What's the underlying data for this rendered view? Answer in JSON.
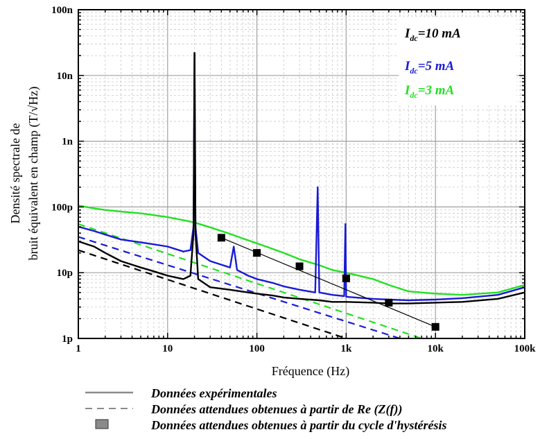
{
  "chart_data": {
    "type": "line",
    "xscale": "log",
    "yscale": "log",
    "xlim": [
      1,
      100000
    ],
    "ylim": [
      1e-12,
      1e-07
    ],
    "xlabel": "Fréquence (Hz)",
    "ylabel": [
      "Densité spectrale de",
      "bruit équivalent en champ (T/√Hz)"
    ],
    "grid": "major and minor, dashed",
    "x_tick_labels": [
      "1",
      "10",
      "100",
      "1k",
      "10k",
      "100k"
    ],
    "y_tick_labels": [
      "1p",
      "10p",
      "100p",
      "1n",
      "10n",
      "100n"
    ],
    "annotations": [
      {
        "main": "I",
        "sub": "dc",
        "rest": "=10 mA",
        "color": "#000000"
      },
      {
        "main": "I",
        "sub": "dc",
        "rest": "=5 mA",
        "color": "#1a1ad6"
      },
      {
        "main": "I",
        "sub": "dc",
        "rest": "=3 mA",
        "color": "#22e022"
      }
    ],
    "series": [
      {
        "color": "#000000",
        "style": "solid",
        "x": [
          1,
          1.5,
          2,
          3,
          5,
          7,
          10,
          15,
          18,
          19.5,
          20,
          20.5,
          22,
          30,
          50,
          80,
          100,
          150,
          200,
          300,
          500,
          700,
          1000,
          2000,
          3000,
          5000,
          10000,
          20000,
          50000,
          100000
        ],
        "y": [
          3e-11,
          2.5e-11,
          2e-11,
          1.5e-11,
          1.2e-11,
          1.05e-11,
          9e-12,
          8e-12,
          9e-12,
          4e-11,
          2.2e-08,
          4e-11,
          8e-12,
          6e-12,
          5.5e-12,
          5e-12,
          4.8e-12,
          4.5e-12,
          4.2e-12,
          4e-12,
          3.8e-12,
          3.6e-12,
          3.6e-12,
          3.5e-12,
          3.4e-12,
          3.4e-12,
          3.5e-12,
          3.6e-12,
          4e-12,
          5e-12
        ]
      },
      {
        "color": "#1a1ad6",
        "style": "solid",
        "x": [
          1,
          1.5,
          2,
          3,
          5,
          7,
          10,
          15,
          18,
          19.5,
          20,
          20.5,
          22,
          30,
          50,
          55,
          60,
          80,
          100,
          150,
          200,
          300,
          450,
          480,
          500,
          700,
          950,
          980,
          1000,
          2000,
          3000,
          5000,
          10000,
          20000,
          50000,
          100000
        ],
        "y": [
          5e-11,
          4.3e-11,
          3.8e-11,
          3.2e-11,
          2.9e-11,
          2.7e-11,
          2.5e-11,
          2.1e-11,
          2.2e-11,
          5e-11,
          2.2e-08,
          5e-11,
          2e-11,
          1.5e-11,
          1.2e-11,
          2.5e-11,
          1.1e-11,
          9e-12,
          8e-12,
          7e-12,
          6.2e-12,
          5.5e-12,
          5e-12,
          2e-10,
          5e-12,
          4.6e-12,
          4.4e-12,
          5.5e-11,
          4.3e-12,
          4e-12,
          3.9e-12,
          3.8e-12,
          3.9e-12,
          4.1e-12,
          4.6e-12,
          6e-12
        ]
      },
      {
        "color": "#22e022",
        "style": "solid",
        "x": [
          1,
          1.5,
          2,
          3,
          5,
          7,
          10,
          15,
          20,
          30,
          50,
          80,
          100,
          150,
          200,
          300,
          500,
          700,
          1000,
          2000,
          3000,
          5000,
          10000,
          20000,
          50000,
          100000
        ],
        "y": [
          1.05e-10,
          9.5e-11,
          9e-11,
          8.5e-11,
          8e-11,
          7.5e-11,
          7e-11,
          6.3e-11,
          5.8e-11,
          4.9e-11,
          3.9e-11,
          3.1e-11,
          2.8e-11,
          2.3e-11,
          2e-11,
          1.6e-11,
          1.3e-11,
          1.1e-11,
          1e-11,
          8e-12,
          6.5e-12,
          5.2e-12,
          4.8e-12,
          4.6e-12,
          5e-12,
          6.5e-12
        ]
      },
      {
        "color": "#000000",
        "style": "dashed",
        "x": [
          1,
          1000
        ],
        "y": [
          2.2e-11,
          1e-12
        ]
      },
      {
        "color": "#1a1ad6",
        "style": "dashed",
        "x": [
          1,
          4000
        ],
        "y": [
          3.5e-11,
          1e-12
        ]
      },
      {
        "color": "#22e022",
        "style": "dashed",
        "x": [
          1,
          7000
        ],
        "y": [
          5.5e-11,
          1e-12
        ]
      }
    ],
    "markers": {
      "x": [
        40,
        100,
        300,
        1000,
        3000,
        10000
      ],
      "y": [
        3.4e-11,
        2e-11,
        1.25e-11,
        8.2e-12,
        3.5e-12,
        1.5e-12
      ],
      "color": "#000000"
    },
    "fit_line": {
      "x": [
        40,
        10000
      ],
      "y": [
        3.4e-11,
        1.5e-12
      ],
      "color": "#000000"
    }
  },
  "legend": {
    "items": [
      {
        "label": "Données expérimentales",
        "symbol": "solid-line"
      },
      {
        "label": "Données attendues obtenues à partir de Re (Z(f))",
        "symbol": "dashed-line"
      },
      {
        "label": "Données attendues obtenues à partir du cycle d'hystérésis",
        "symbol": "square"
      }
    ]
  }
}
